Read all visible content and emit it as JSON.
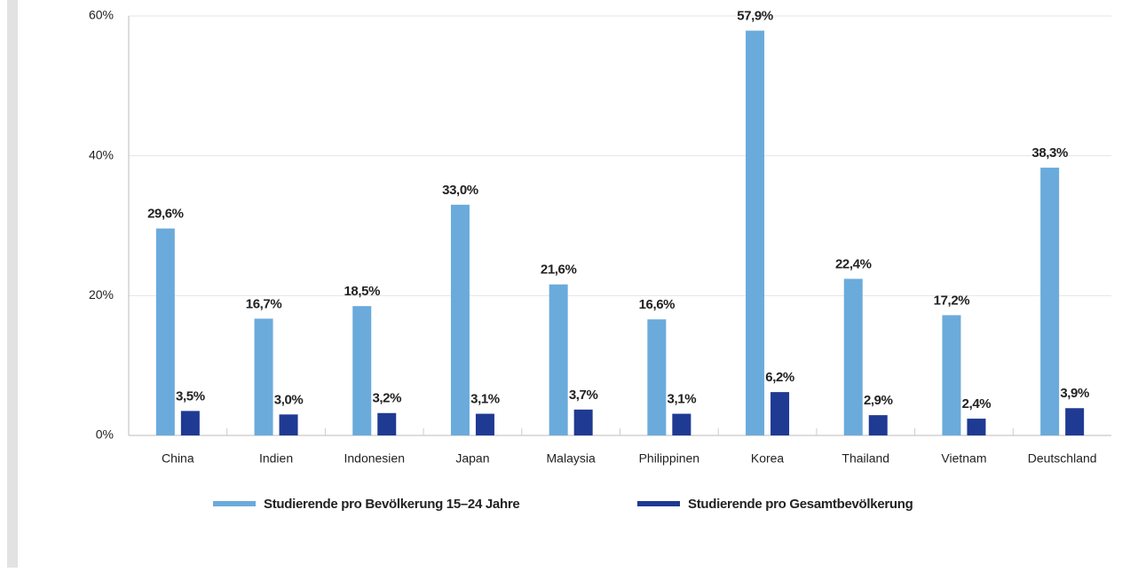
{
  "chart_data": {
    "type": "bar",
    "categories": [
      "China",
      "Indien",
      "Indonesien",
      "Japan",
      "Malaysia",
      "Philippinen",
      "Korea",
      "Thailand",
      "Vietnam",
      "Deutschland"
    ],
    "series": [
      {
        "name": "Studierende pro Bevölkerung 15–24 Jahre",
        "color": "#6aabdc",
        "values": [
          29.6,
          16.7,
          18.5,
          33.0,
          21.6,
          16.6,
          57.9,
          22.4,
          17.2,
          38.3
        ],
        "value_labels": [
          "29,6%",
          "16,7%",
          "18,5%",
          "33,0%",
          "21,6%",
          "16,6%",
          "57,9%",
          "22,4%",
          "17,2%",
          "38,3%"
        ]
      },
      {
        "name": "Studierende pro Gesamtbevölkerung",
        "color": "#1f3a93",
        "values": [
          3.5,
          3.0,
          3.2,
          3.1,
          3.7,
          3.1,
          6.2,
          2.9,
          2.4,
          3.9
        ],
        "value_labels": [
          "3,5%",
          "3,0%",
          "3,2%",
          "3,1%",
          "3,7%",
          "3,1%",
          "6,2%",
          "2,9%",
          "2,4%",
          "3,9%"
        ]
      }
    ],
    "ylim": [
      0,
      60
    ],
    "yticks": [
      {
        "value": 0,
        "label": "0%"
      },
      {
        "value": 20,
        "label": "20%"
      },
      {
        "value": 40,
        "label": "40%"
      },
      {
        "value": 60,
        "label": "60%"
      }
    ],
    "grid": true,
    "legend": "bottom"
  }
}
